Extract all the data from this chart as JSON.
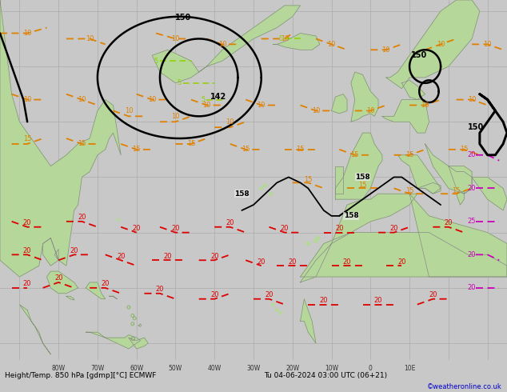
{
  "title_left": "Height/Temp. 850 hPa [gdmp][°C] ECMWF",
  "title_right": "Tu 04-06-2024 03:00 UTC (06+21)",
  "credit": "©weatheronline.co.uk",
  "fig_width": 6.34,
  "fig_height": 4.9,
  "dpi": 100,
  "land_color": "#b5d89a",
  "sea_color": "#e8e8e8",
  "grid_color": "#aaaaaa",
  "coast_color": "#888888",
  "black": "#000000",
  "orange": "#e08000",
  "red": "#dd0000",
  "magenta": "#cc00bb",
  "lgreen": "#90d000",
  "lw_black": 1.8,
  "lw_orange": 1.3,
  "lw_red": 1.3,
  "lw_magenta": 1.3,
  "lw_lgreen": 1.1,
  "map_lon_min": -95,
  "map_lon_max": 35,
  "map_lat_min": 7,
  "map_lat_max": 72
}
